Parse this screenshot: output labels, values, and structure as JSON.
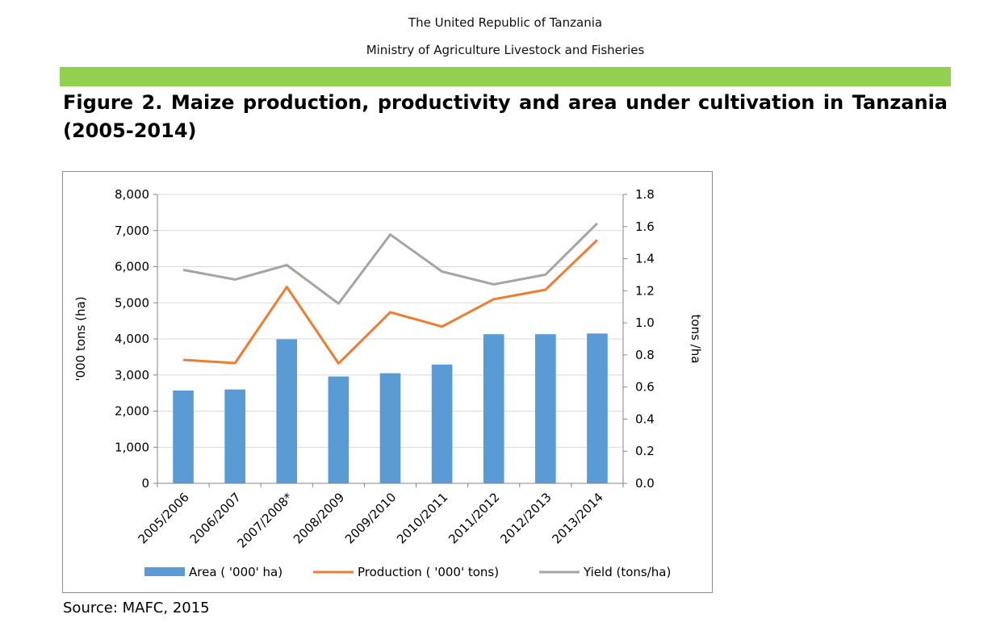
{
  "header": {
    "line1": "The United Republic of Tanzania",
    "line2": "Ministry of Agriculture Livestock and Fisheries"
  },
  "figure_title": "Figure 2. Maize production, productivity and area under cultivation in Tanzania (2005-2014)",
  "source": "Source: MAFC, 2015",
  "colors": {
    "header_bar": "#92d050",
    "area": "#5b9bd5",
    "production": "#ed7d31",
    "yield": "#a5a5a5"
  },
  "chart_data": {
    "type": "bar",
    "categories": [
      "2005/2006",
      "2006/2007",
      "2007/2008*",
      "2008/2009",
      "2009/2010",
      "2010/2011",
      "2011/2012",
      "2012/2013",
      "2013/2014"
    ],
    "series": [
      {
        "name": "Area ( '000' ha)",
        "type": "bar",
        "axis": "left",
        "values": [
          2570,
          2600,
          3990,
          2960,
          3050,
          3290,
          4130,
          4130,
          4150
        ]
      },
      {
        "name": "Production ( '000' tons)",
        "type": "line",
        "axis": "left",
        "values": [
          3420,
          3330,
          5440,
          3320,
          4740,
          4340,
          5100,
          5360,
          6740
        ]
      },
      {
        "name": "Yield (tons/ha)",
        "type": "line",
        "axis": "right",
        "values": [
          1.33,
          1.27,
          1.36,
          1.12,
          1.55,
          1.32,
          1.24,
          1.3,
          1.62
        ]
      }
    ],
    "ylabel": "'000 tons (ha)",
    "y2label": "tons /ha",
    "ylim": [
      0,
      8000
    ],
    "y2lim": [
      0,
      1.8
    ],
    "yticks": [
      "0",
      "1,000",
      "2,000",
      "3,000",
      "4,000",
      "5,000",
      "6,000",
      "7,000",
      "8,000"
    ],
    "y2ticks": [
      "0.0",
      "0.2",
      "0.4",
      "0.6",
      "0.8",
      "1.0",
      "1.2",
      "1.4",
      "1.6",
      "1.8"
    ],
    "grid": true,
    "legend_position": "bottom"
  }
}
